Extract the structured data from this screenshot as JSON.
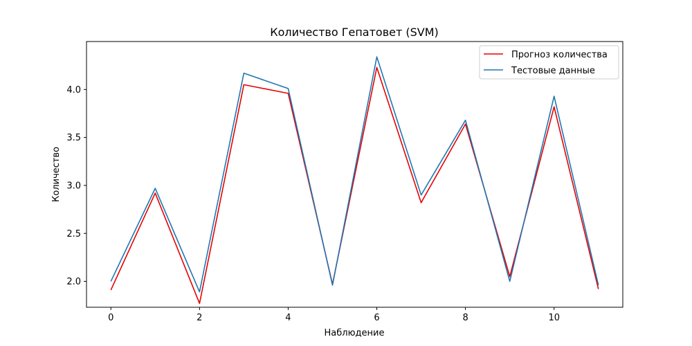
{
  "chart_data": {
    "type": "line",
    "title": "Количество Гепатовет  (SVM)",
    "xlabel": "Наблюдение",
    "ylabel": "Количество",
    "x": [
      0,
      1,
      2,
      3,
      4,
      5,
      6,
      7,
      8,
      9,
      10,
      11
    ],
    "xlim": [
      -0.55,
      11.55
    ],
    "ylim": [
      1.73,
      4.5
    ],
    "xticks": [
      0,
      2,
      4,
      6,
      8,
      10
    ],
    "yticks": [
      2.0,
      2.5,
      3.0,
      3.5,
      4.0
    ],
    "xtick_labels": [
      "0",
      "2",
      "4",
      "6",
      "8",
      "10"
    ],
    "ytick_labels": [
      "2.0",
      "2.5",
      "3.0",
      "3.5",
      "4.0"
    ],
    "grid": false,
    "legend_position": "top-right",
    "series": [
      {
        "name": "Прогноз количества",
        "color": "#e60000",
        "values": [
          1.91,
          2.92,
          1.77,
          4.05,
          3.96,
          1.97,
          4.23,
          2.82,
          3.64,
          2.05,
          3.82,
          1.92
        ]
      },
      {
        "name": "Тестовые данные",
        "color": "#1f77b4",
        "values": [
          2.0,
          2.97,
          1.89,
          4.17,
          4.01,
          1.96,
          4.34,
          2.9,
          3.68,
          2.0,
          3.93,
          1.96
        ]
      }
    ]
  }
}
